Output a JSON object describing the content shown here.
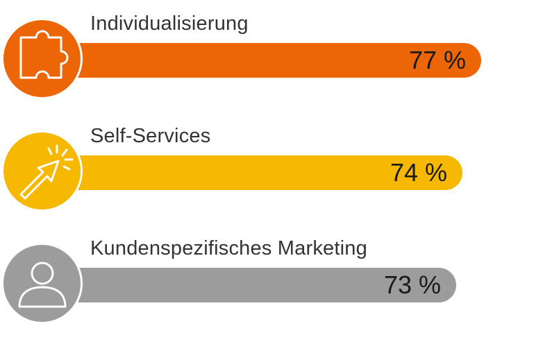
{
  "chart_data": {
    "type": "bar",
    "orientation": "horizontal",
    "categories": [
      "Individualisierung",
      "Self-Services",
      "Kundenspezifisches Marketing"
    ],
    "values": [
      77,
      74,
      73
    ],
    "value_labels": [
      "77 %",
      "74 %",
      "73 %"
    ],
    "unit": "%",
    "colors": [
      "#ec6608",
      "#f6b800",
      "#9c9c9c"
    ],
    "icons": [
      "puzzle-piece-icon",
      "cursor-arrow-click-icon",
      "person-icon"
    ],
    "xlim": [
      0,
      100
    ],
    "grid": false,
    "legend": "none"
  }
}
